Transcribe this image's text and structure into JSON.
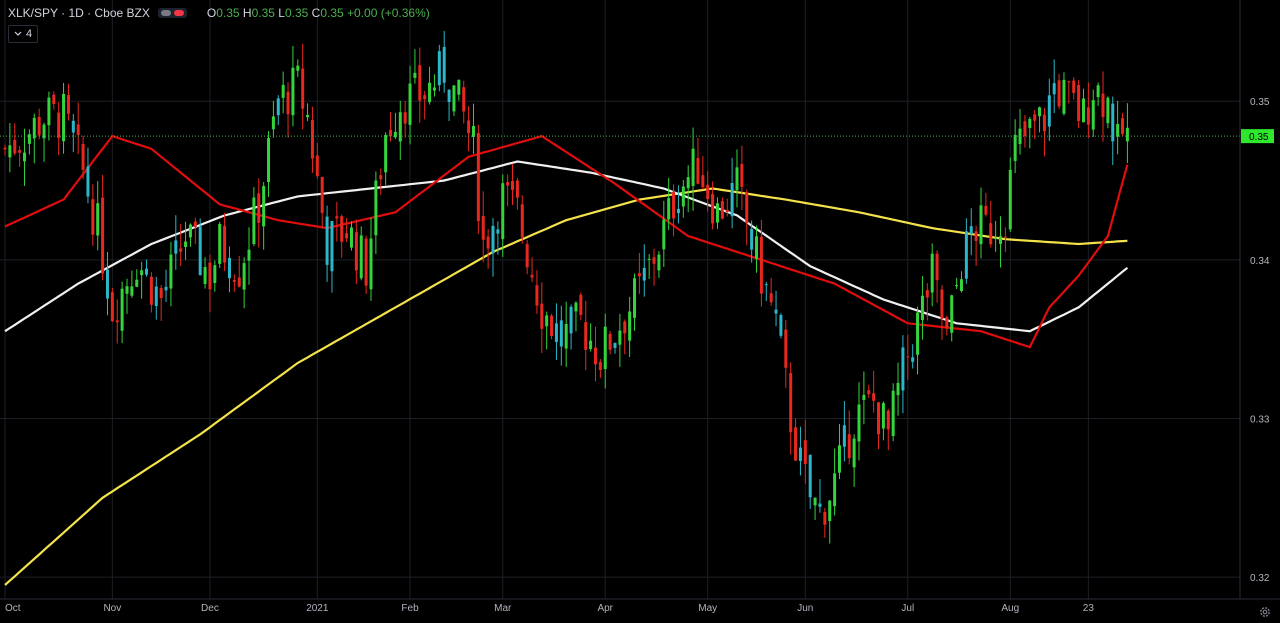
{
  "header": {
    "symbol": "XLK/SPY",
    "interval": "1D",
    "exchange": "Cboe BZX",
    "title": "XLK/SPY · 1D · Cboe BZX",
    "ohlc": {
      "o_label": "O",
      "o": "0.35",
      "h_label": "H",
      "h": "0.35",
      "l_label": "L",
      "l": "0.35",
      "c_label": "C",
      "c": "0.35",
      "change": "+0.00 (+0.36%)"
    }
  },
  "indicator_toggle": {
    "icon": "chevron-down-icon",
    "count": "4"
  },
  "last_price_label": "0.35",
  "colors": {
    "up": "#33d43c",
    "down": "#e8281f",
    "neutral": "#2bb7c9",
    "ma_red": "#e00d0d",
    "ma_white": "#f0f0f0",
    "ma_yellow": "#f3e24a",
    "price_line": "#4caf50"
  },
  "chart_data": {
    "type": "candlestick",
    "x_tick_labels": [
      "Oct",
      "Nov",
      "Dec",
      "2021",
      "Feb",
      "Mar",
      "Apr",
      "May",
      "Jun",
      "Jul",
      "Aug",
      "23"
    ],
    "y_tick_labels": [
      "0.35",
      "0.34",
      "0.33",
      "0.32"
    ],
    "y_ticks": [
      0.35,
      0.34,
      0.33,
      0.32
    ],
    "ylim": [
      0.3195,
      0.3555
    ],
    "last_price": 0.3478,
    "candle_counts_per_month": [
      22,
      20,
      22,
      19,
      19,
      21,
      21,
      20,
      21,
      21,
      10
    ],
    "close_anchors": [
      [
        0,
        0.347
      ],
      [
        4,
        0.3478
      ],
      [
        8,
        0.349
      ],
      [
        12,
        0.349
      ],
      [
        16,
        0.3455
      ],
      [
        19,
        0.342
      ],
      [
        22,
        0.337
      ],
      [
        27,
        0.34
      ],
      [
        32,
        0.3375
      ],
      [
        37,
        0.3415
      ],
      [
        42,
        0.339
      ],
      [
        44,
        0.341
      ],
      [
        48,
        0.3395
      ],
      [
        52,
        0.3435
      ],
      [
        56,
        0.35
      ],
      [
        60,
        0.351
      ],
      [
        62,
        0.349
      ],
      [
        66,
        0.341
      ],
      [
        70,
        0.342
      ],
      [
        74,
        0.3395
      ],
      [
        78,
        0.348
      ],
      [
        81,
        0.35
      ],
      [
        86,
        0.3505
      ],
      [
        90,
        0.352
      ],
      [
        94,
        0.349
      ],
      [
        96,
        0.347
      ],
      [
        98,
        0.341
      ],
      [
        102,
        0.344
      ],
      [
        105,
        0.343
      ],
      [
        110,
        0.337
      ],
      [
        114,
        0.335
      ],
      [
        118,
        0.336
      ],
      [
        122,
        0.334
      ],
      [
        126,
        0.336
      ],
      [
        130,
        0.338
      ],
      [
        134,
        0.341
      ],
      [
        138,
        0.3445
      ],
      [
        142,
        0.346
      ],
      [
        146,
        0.343
      ],
      [
        150,
        0.3445
      ],
      [
        154,
        0.34
      ],
      [
        158,
        0.336
      ],
      [
        161,
        0.33
      ],
      [
        163,
        0.327
      ],
      [
        165,
        0.325
      ],
      [
        167,
        0.324
      ],
      [
        170,
        0.326
      ],
      [
        174,
        0.33
      ],
      [
        178,
        0.331
      ],
      [
        181,
        0.329
      ],
      [
        184,
        0.333
      ],
      [
        188,
        0.337
      ],
      [
        190,
        0.339
      ],
      [
        193,
        0.335
      ],
      [
        196,
        0.34
      ],
      [
        199,
        0.342
      ],
      [
        202,
        0.342
      ],
      [
        205,
        0.343
      ],
      [
        207,
        0.347
      ],
      [
        210,
        0.348
      ],
      [
        213,
        0.349
      ],
      [
        215,
        0.351
      ],
      [
        218,
        0.35
      ],
      [
        221,
        0.349
      ],
      [
        223,
        0.351
      ],
      [
        226,
        0.35
      ],
      [
        228,
        0.347
      ],
      [
        229,
        0.348
      ],
      [
        230,
        0.3478
      ]
    ],
    "series": [
      {
        "name": "",
        "color": "#e00d0d",
        "values": [
          [
            0,
            0.3421
          ],
          [
            12,
            0.3438
          ],
          [
            22,
            0.3478
          ],
          [
            30,
            0.347
          ],
          [
            44,
            0.3435
          ],
          [
            56,
            0.3425
          ],
          [
            66,
            0.342
          ],
          [
            80,
            0.343
          ],
          [
            95,
            0.3465
          ],
          [
            110,
            0.3478
          ],
          [
            125,
            0.3448
          ],
          [
            140,
            0.3415
          ],
          [
            150,
            0.3405
          ],
          [
            170,
            0.3385
          ],
          [
            185,
            0.336
          ],
          [
            200,
            0.3355
          ],
          [
            210,
            0.3345
          ],
          [
            214,
            0.337
          ],
          [
            220,
            0.339
          ],
          [
            226,
            0.3415
          ],
          [
            230,
            0.346
          ]
        ]
      },
      {
        "name": "",
        "color": "#f0f0f0",
        "values": [
          [
            0,
            0.3355
          ],
          [
            15,
            0.3385
          ],
          [
            30,
            0.341
          ],
          [
            45,
            0.3428
          ],
          [
            60,
            0.344
          ],
          [
            75,
            0.3445
          ],
          [
            90,
            0.345
          ],
          [
            105,
            0.3462
          ],
          [
            120,
            0.3455
          ],
          [
            135,
            0.3445
          ],
          [
            150,
            0.3428
          ],
          [
            165,
            0.3396
          ],
          [
            180,
            0.3375
          ],
          [
            195,
            0.336
          ],
          [
            210,
            0.3355
          ],
          [
            220,
            0.337
          ],
          [
            230,
            0.3395
          ]
        ]
      },
      {
        "name": "",
        "color": "#f3e24a",
        "values": [
          [
            0,
            0.3195
          ],
          [
            20,
            0.325
          ],
          [
            40,
            0.329
          ],
          [
            60,
            0.3335
          ],
          [
            80,
            0.337
          ],
          [
            100,
            0.3405
          ],
          [
            115,
            0.3425
          ],
          [
            130,
            0.3438
          ],
          [
            145,
            0.3445
          ],
          [
            160,
            0.3438
          ],
          [
            175,
            0.343
          ],
          [
            190,
            0.342
          ],
          [
            205,
            0.3413
          ],
          [
            220,
            0.341
          ],
          [
            230,
            0.3412
          ]
        ]
      }
    ]
  }
}
